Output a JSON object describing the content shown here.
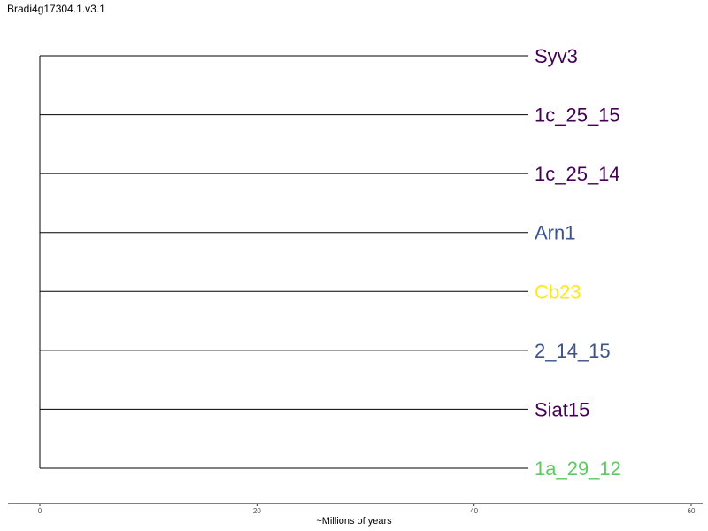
{
  "title": "Bradi4g17304.1.v3.1",
  "chart_data": {
    "type": "tree",
    "xlabel": "~Millions of years",
    "xlim": [
      0,
      60
    ],
    "x_ticks": [
      "0",
      "20",
      "40",
      "60"
    ],
    "leaves": [
      {
        "label": "Syv3",
        "age": 45,
        "color": "#440154"
      },
      {
        "label": "1c_25_15",
        "age": 45,
        "color": "#440154"
      },
      {
        "label": "1c_25_14",
        "age": 45,
        "color": "#440154"
      },
      {
        "label": "Arn1",
        "age": 45,
        "color": "#3b528b"
      },
      {
        "label": "Cb23",
        "age": 45,
        "color": "#fde725"
      },
      {
        "label": "2_14_15",
        "age": 45,
        "color": "#3b528b"
      },
      {
        "label": "Siat15",
        "age": 45,
        "color": "#440154"
      },
      {
        "label": "1a_29_12",
        "age": 45,
        "color": "#5ec962"
      }
    ]
  }
}
